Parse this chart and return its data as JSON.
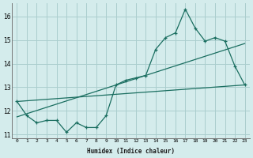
{
  "xlabel": "Humidex (Indice chaleur)",
  "background_color": "#d4ecec",
  "grid_color": "#aacece",
  "line_color": "#1a6e60",
  "x_values": [
    0,
    1,
    2,
    3,
    4,
    5,
    6,
    7,
    8,
    9,
    10,
    11,
    12,
    13,
    14,
    15,
    16,
    17,
    18,
    19,
    20,
    21,
    22,
    23
  ],
  "series1": [
    12.4,
    11.8,
    11.5,
    11.6,
    11.6,
    11.1,
    11.5,
    11.3,
    11.3,
    11.8,
    13.1,
    13.3,
    13.4,
    13.5,
    14.6,
    15.1,
    15.3,
    16.3,
    15.5,
    14.95,
    15.1,
    14.95,
    13.9,
    13.1
  ],
  "series2_x": [
    0,
    23
  ],
  "series2_y": [
    12.4,
    13.1
  ],
  "series3_x": [
    0,
    23
  ],
  "series3_y": [
    11.75,
    14.85
  ],
  "ylim": [
    10.85,
    16.55
  ],
  "xlim": [
    -0.5,
    23.5
  ],
  "yticks": [
    11,
    12,
    13,
    14,
    15,
    16
  ],
  "xticks": [
    0,
    1,
    2,
    3,
    4,
    5,
    6,
    7,
    8,
    9,
    10,
    11,
    12,
    13,
    14,
    15,
    16,
    17,
    18,
    19,
    20,
    21,
    22,
    23
  ],
  "xtick_labels": [
    "0",
    "1",
    "2",
    "3",
    "4",
    "5",
    "6",
    "7",
    "8",
    "9",
    "10",
    "11",
    "12",
    "13",
    "14",
    "15",
    "16",
    "17",
    "18",
    "19",
    "20",
    "21",
    "22",
    "23"
  ]
}
